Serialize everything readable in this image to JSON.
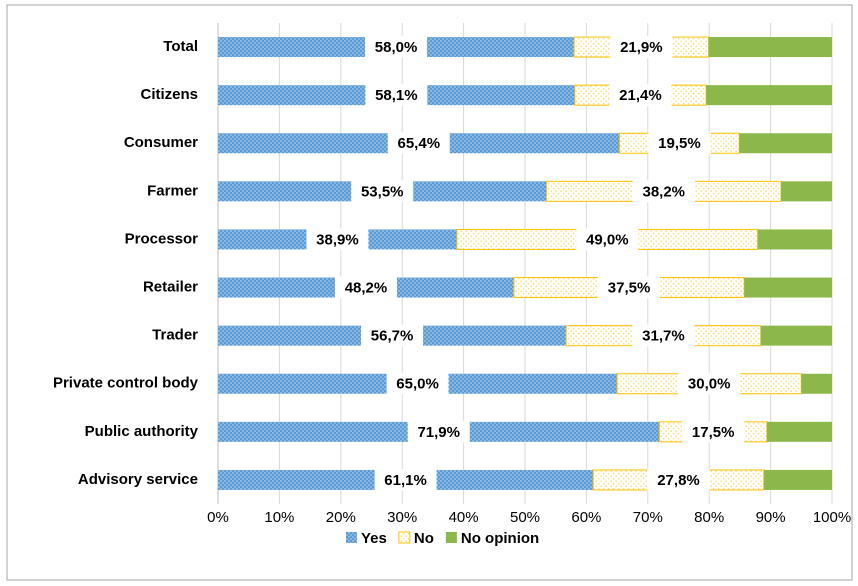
{
  "chart_data": {
    "type": "stacked-barh",
    "categories": [
      "Total",
      "Citizens",
      "Consumer",
      "Farmer",
      "Processor",
      "Retailer",
      "Trader",
      "Private control body",
      "Public authority",
      "Advisory service"
    ],
    "series": [
      {
        "name": "Yes",
        "color": "#5b9bd5",
        "fill": "dotted",
        "values": [
          58.0,
          58.1,
          65.4,
          53.5,
          38.9,
          48.2,
          56.7,
          65.0,
          71.9,
          61.1
        ],
        "value_labels": [
          "58,0%",
          "58,1%",
          "65,4%",
          "53,5%",
          "38,9%",
          "48,2%",
          "56,7%",
          "65,0%",
          "71,9%",
          "61,1%"
        ]
      },
      {
        "name": "No",
        "color": "#ffc000",
        "fill": "dotted-light",
        "values": [
          21.9,
          21.4,
          19.5,
          38.2,
          49.0,
          37.5,
          31.7,
          30.0,
          17.5,
          27.8
        ],
        "value_labels": [
          "21,9%",
          "21,4%",
          "19,5%",
          "38,2%",
          "49,0%",
          "37,5%",
          "31,7%",
          "30,0%",
          "17,5%",
          "27,8%"
        ]
      },
      {
        "name": "No opinion",
        "color": "#8cb84b",
        "fill": "solid",
        "values": [
          20.1,
          20.5,
          15.1,
          8.3,
          12.1,
          14.3,
          11.6,
          5.0,
          10.6,
          11.1
        ]
      }
    ],
    "xlim": [
      0,
      100
    ],
    "xticks": [
      {
        "value": 0,
        "label": "0%"
      },
      {
        "value": 10,
        "label": "10%"
      },
      {
        "value": 20,
        "label": "20%"
      },
      {
        "value": 30,
        "label": "30%"
      },
      {
        "value": 40,
        "label": "40%"
      },
      {
        "value": 50,
        "label": "50%"
      },
      {
        "value": 60,
        "label": "60%"
      },
      {
        "value": 70,
        "label": "70%"
      },
      {
        "value": 80,
        "label": "80%"
      },
      {
        "value": 90,
        "label": "90%"
      },
      {
        "value": 100,
        "label": "100%"
      }
    ],
    "grid": true
  }
}
